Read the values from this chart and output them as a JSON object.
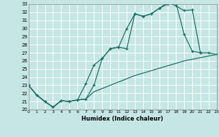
{
  "xlabel": "Humidex (Indice chaleur)",
  "bg_color": "#c6e6e6",
  "grid_color": "#ffffff",
  "line_color": "#1a6e60",
  "xlim": [
    0,
    23
  ],
  "ylim": [
    20,
    33
  ],
  "xticks": [
    0,
    1,
    2,
    3,
    4,
    5,
    6,
    7,
    8,
    9,
    10,
    11,
    12,
    13,
    14,
    15,
    16,
    17,
    18,
    19,
    20,
    21,
    22,
    23
  ],
  "yticks": [
    20,
    21,
    22,
    23,
    24,
    25,
    26,
    27,
    28,
    29,
    30,
    31,
    32,
    33
  ],
  "line1_x": [
    0,
    1,
    2,
    3,
    4,
    5,
    6,
    7,
    8,
    9,
    10,
    11,
    12,
    13,
    14,
    15,
    16,
    17,
    18,
    19,
    20,
    21,
    22,
    23
  ],
  "line1_y": [
    23.0,
    21.8,
    21.0,
    20.3,
    21.1,
    21.0,
    21.2,
    21.3,
    22.2,
    22.6,
    23.0,
    23.4,
    23.8,
    24.2,
    24.5,
    24.8,
    25.1,
    25.4,
    25.7,
    26.0,
    26.2,
    26.4,
    26.6,
    26.8
  ],
  "line2_x": [
    0,
    1,
    2,
    3,
    4,
    5,
    6,
    7,
    8,
    9,
    10,
    11,
    12,
    13,
    14,
    15,
    16,
    17,
    18,
    19,
    20,
    21
  ],
  "line2_y": [
    23.0,
    21.8,
    21.0,
    20.3,
    21.1,
    21.0,
    21.2,
    23.2,
    25.5,
    26.3,
    27.5,
    27.7,
    30.0,
    31.8,
    31.5,
    31.8,
    32.5,
    33.0,
    33.2,
    29.3,
    27.2,
    27.0
  ],
  "line3_x": [
    0,
    1,
    2,
    3,
    4,
    5,
    6,
    7,
    8,
    9,
    10,
    11,
    12,
    13,
    14,
    15,
    16,
    17,
    18,
    19,
    20,
    21,
    22,
    23
  ],
  "line3_y": [
    23.0,
    21.8,
    21.0,
    20.3,
    21.1,
    21.0,
    21.2,
    21.3,
    23.0,
    26.3,
    27.5,
    27.7,
    27.5,
    31.8,
    31.5,
    31.8,
    32.5,
    33.2,
    32.8,
    32.2,
    32.3,
    27.0,
    27.0,
    26.8
  ]
}
